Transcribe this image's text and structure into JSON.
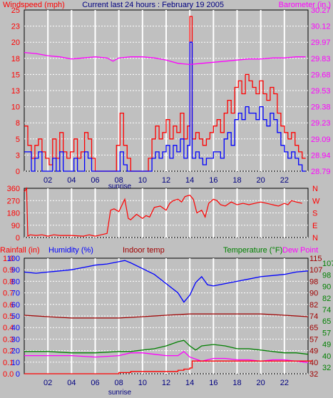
{
  "panel1": {
    "title_left": "Windspeed (mph)",
    "title_center": "Current last 24 hours : February 19 2005",
    "title_right": "Barometer (in.)"
  },
  "panel3": {
    "label_rain": "Rainfall (in)",
    "label_humidity": "Humidity (%)",
    "label_indoor": "Indoor temp",
    "label_temperature": "Temperature (°F)",
    "label_dewpoint": "Dew Point"
  },
  "sunrise_label": "sunrise",
  "colors": {
    "background": "#c0c0c0",
    "gridline": "#ffffff",
    "wind_speed": "#0000ff",
    "wind_gust": "#ff0000",
    "barometer": "#ff00ff",
    "direction": "#ff0000",
    "humidity": "#0000ff",
    "indoor": "#a00000",
    "temperature": "#008000",
    "dewpoint": "#ff00ff",
    "rain": "#ff0000"
  },
  "chart_data": [
    {
      "type": "bar",
      "name": "windspeed",
      "x_ticks": [
        "02",
        "04",
        "06",
        "08",
        "10",
        "12",
        "14",
        "16",
        "18",
        "20",
        "22"
      ],
      "xlim": [
        0,
        24
      ],
      "ylim": [
        0,
        25
      ],
      "y_ticks_left": [
        "25",
        "23",
        "20",
        "18",
        "15",
        "13",
        "10",
        "8",
        "5",
        "3",
        "0"
      ],
      "y_ticks_right": [
        "30.27",
        "30.12",
        "29.97",
        "29.83",
        "29.68",
        "29.53",
        "29.38",
        "29.23",
        "29.09",
        "28.94",
        "28.79"
      ],
      "y2lim": [
        28.79,
        30.27
      ],
      "series": [
        {
          "name": "Windspeed (mph)",
          "x": [
            0.0,
            0.3,
            0.6,
            0.9,
            1.2,
            1.5,
            1.8,
            2.1,
            2.4,
            2.7,
            3.0,
            3.3,
            3.6,
            3.9,
            4.2,
            4.5,
            4.8,
            5.1,
            5.4,
            5.7,
            6.0,
            6.3,
            6.6,
            6.9,
            7.2,
            7.5,
            7.8,
            8.1,
            8.4,
            8.7,
            9.0,
            9.3,
            9.6,
            9.9,
            10.2,
            10.5,
            10.8,
            11.1,
            11.4,
            11.7,
            12.0,
            12.3,
            12.6,
            12.9,
            13.2,
            13.5,
            13.8,
            14.0,
            14.2,
            14.5,
            14.8,
            15.1,
            15.4,
            15.7,
            16.0,
            16.3,
            16.6,
            16.9,
            17.2,
            17.5,
            17.8,
            18.1,
            18.4,
            18.7,
            19.0,
            19.3,
            19.6,
            19.9,
            20.2,
            20.5,
            20.8,
            21.1,
            21.4,
            21.7,
            22.0,
            22.3,
            22.6,
            22.9,
            23.2,
            23.5
          ],
          "values": [
            3,
            3,
            0,
            2,
            3,
            0,
            0,
            0,
            2,
            0,
            3,
            0,
            0,
            0,
            2,
            0,
            0,
            3,
            2,
            0,
            0,
            0,
            0,
            0,
            0,
            0,
            0,
            3,
            1,
            0,
            0,
            0,
            0,
            0,
            0,
            0,
            2,
            3,
            2,
            3,
            4,
            2,
            4,
            3,
            5,
            2,
            4,
            20,
            2,
            3,
            2,
            1,
            2,
            2,
            3,
            3,
            2,
            5,
            6,
            4,
            8,
            9,
            8,
            10,
            9,
            9,
            8,
            10,
            8,
            7,
            9,
            8,
            6,
            4,
            3,
            2,
            3,
            2,
            1,
            0
          ]
        },
        {
          "name": "Gust",
          "x": [
            0.0,
            0.3,
            0.6,
            0.9,
            1.2,
            1.5,
            1.8,
            2.1,
            2.4,
            2.7,
            3.0,
            3.3,
            3.6,
            3.9,
            4.2,
            4.5,
            4.8,
            5.1,
            5.4,
            5.7,
            6.0,
            6.3,
            6.6,
            6.9,
            7.2,
            7.5,
            7.8,
            8.1,
            8.4,
            8.7,
            9.0,
            9.3,
            9.6,
            9.9,
            10.2,
            10.5,
            10.8,
            11.1,
            11.4,
            11.7,
            12.0,
            12.3,
            12.6,
            12.9,
            13.2,
            13.5,
            13.8,
            14.0,
            14.2,
            14.5,
            14.8,
            15.1,
            15.4,
            15.7,
            16.0,
            16.3,
            16.6,
            16.9,
            17.2,
            17.5,
            17.8,
            18.1,
            18.4,
            18.7,
            19.0,
            19.3,
            19.6,
            19.9,
            20.2,
            20.5,
            20.8,
            21.1,
            21.4,
            21.7,
            22.0,
            22.3,
            22.6,
            22.9,
            23.2,
            23.5
          ],
          "values": [
            7,
            4,
            2,
            4,
            5,
            3,
            2,
            1,
            5,
            2,
            6,
            3,
            2,
            3,
            5,
            2,
            3,
            6,
            5,
            2,
            0,
            0,
            0,
            0,
            0,
            0,
            4,
            9,
            4,
            2,
            0,
            0,
            0,
            0,
            0,
            2,
            5,
            7,
            5,
            6,
            8,
            5,
            7,
            6,
            9,
            5,
            7,
            24,
            5,
            6,
            5,
            4,
            5,
            6,
            7,
            8,
            6,
            9,
            11,
            9,
            13,
            14,
            12,
            15,
            14,
            13,
            12,
            14,
            12,
            11,
            13,
            12,
            9,
            7,
            6,
            5,
            6,
            4,
            3,
            2
          ]
        },
        {
          "name": "Barometer (in.)",
          "x": [
            0,
            1,
            2,
            3,
            4,
            5,
            6,
            7,
            7.5,
            8,
            9,
            10,
            11,
            12,
            13,
            14,
            15,
            16,
            17,
            18,
            19,
            20,
            21,
            22,
            23,
            23.8
          ],
          "values": [
            29.88,
            29.87,
            29.85,
            29.84,
            29.82,
            29.83,
            29.84,
            29.83,
            29.8,
            29.83,
            29.84,
            29.84,
            29.83,
            29.81,
            29.78,
            29.77,
            29.78,
            29.79,
            29.8,
            29.81,
            29.82,
            29.82,
            29.83,
            29.83,
            29.84,
            29.84
          ]
        }
      ]
    },
    {
      "type": "line",
      "name": "wind_direction",
      "x_ticks": [
        "02",
        "04",
        "06",
        "08",
        "10",
        "12",
        "14",
        "16",
        "18",
        "20",
        "22"
      ],
      "xlim": [
        0,
        24
      ],
      "ylim": [
        0,
        360
      ],
      "y_ticks_left": [
        "360",
        "270",
        "180",
        "90",
        "0"
      ],
      "y_ticks_right": [
        "N",
        "W",
        "S",
        "E",
        "N"
      ],
      "series": [
        {
          "name": "Wind direction",
          "x": [
            0,
            0.2,
            0.3,
            0.5,
            1,
            1.5,
            2,
            2.5,
            3,
            4,
            5,
            5.5,
            6,
            6.5,
            7,
            7.3,
            7.6,
            8,
            8.5,
            8.8,
            9,
            9.5,
            10,
            10.3,
            10.6,
            11,
            11.5,
            12,
            12.3,
            12.6,
            13,
            13.3,
            13.6,
            14,
            14.3,
            14.6,
            15,
            15.3,
            15.6,
            16,
            16.3,
            16.6,
            17,
            17.5,
            18,
            18.5,
            19,
            19.5,
            20,
            20.5,
            21,
            21.5,
            22,
            22.3,
            22.6,
            23,
            23.5
          ],
          "values": [
            335,
            360,
            10,
            20,
            15,
            20,
            10,
            20,
            15,
            15,
            10,
            20,
            10,
            20,
            30,
            200,
            210,
            190,
            280,
            140,
            130,
            170,
            140,
            160,
            150,
            220,
            230,
            200,
            250,
            270,
            280,
            260,
            300,
            310,
            280,
            180,
            200,
            150,
            250,
            280,
            270,
            240,
            230,
            260,
            240,
            250,
            240,
            250,
            260,
            250,
            240,
            230,
            250,
            240,
            270,
            260,
            250
          ]
        }
      ]
    },
    {
      "type": "line",
      "name": "humidity_temperature",
      "x_ticks": [
        "02",
        "04",
        "06",
        "08",
        "10",
        "12",
        "14",
        "16",
        "18",
        "20",
        "22"
      ],
      "xlim": [
        0,
        24
      ],
      "ylim_rain": [
        0.0,
        1.0
      ],
      "ylim_humidity": [
        0,
        100
      ],
      "ylim_temperature": [
        32,
        115
      ],
      "y_ticks_rain": [
        "1.0",
        "0.9",
        "0.8",
        "0.7",
        "0.6",
        "0.5",
        "0.4",
        "0.3",
        "0.2",
        "0.1",
        "0.0"
      ],
      "y_ticks_humidity": [
        "100",
        "90",
        "80",
        "70",
        "60",
        "50",
        "40",
        "30",
        "20",
        "10",
        "0"
      ],
      "y_ticks_temp_a": [
        "115",
        "107",
        "98",
        "90",
        "82",
        "74",
        "65",
        "57",
        "49",
        "40",
        "32"
      ],
      "y_ticks_temp_b": [
        "107",
        "98",
        "90",
        "82",
        "74",
        "65",
        "57",
        "49",
        "40",
        "32"
      ],
      "series": [
        {
          "name": "Humidity (%)",
          "x": [
            0,
            1,
            2,
            3,
            4,
            5,
            6,
            7,
            8,
            8.5,
            9,
            10,
            11,
            12,
            13,
            13.5,
            14,
            14.5,
            15,
            15.5,
            16,
            17,
            18,
            19,
            20,
            21,
            22,
            23,
            24
          ],
          "values": [
            88,
            87,
            88,
            89,
            90,
            92,
            94,
            95,
            97,
            98,
            96,
            91,
            86,
            78,
            70,
            62,
            68,
            79,
            84,
            77,
            76,
            78,
            80,
            82,
            84,
            85,
            86,
            88,
            89
          ]
        },
        {
          "name": "Indoor temp",
          "x": [
            0,
            2,
            4,
            6,
            8,
            10,
            12,
            14,
            16,
            18,
            20,
            22,
            24
          ],
          "values": [
            74,
            73,
            72,
            72,
            72,
            73,
            74,
            75,
            75,
            75,
            75,
            74,
            73
          ]
        },
        {
          "name": "Temperature (°F)",
          "x": [
            0,
            2,
            4,
            6,
            8,
            9,
            10,
            11,
            12,
            13,
            13.5,
            14,
            14.5,
            15,
            16,
            17,
            18,
            19,
            20,
            21,
            22,
            23,
            24
          ],
          "values": [
            48,
            48,
            47,
            47,
            48,
            48,
            49,
            50,
            52,
            55,
            56,
            52,
            49,
            52,
            53,
            52,
            50,
            50,
            49,
            48,
            47,
            47,
            46
          ]
        },
        {
          "name": "Dew Point",
          "x": [
            0,
            2,
            4,
            6,
            8,
            9,
            10,
            11,
            12,
            13,
            13.5,
            14,
            15,
            16,
            17,
            18,
            19,
            20,
            21,
            22,
            23,
            24
          ],
          "values": [
            45,
            45,
            45,
            44,
            45,
            47,
            47,
            46,
            45,
            45,
            48,
            44,
            41,
            43,
            43,
            42,
            42,
            41,
            42,
            42,
            41,
            40
          ]
        },
        {
          "name": "Rainfall (in)",
          "x": [
            0,
            2,
            4,
            6,
            8,
            9,
            10,
            11,
            12,
            13,
            13.5,
            14,
            14.2,
            15,
            18,
            20,
            22,
            24
          ],
          "values": [
            0,
            0,
            0,
            0,
            0.01,
            0.02,
            0.02,
            0.02,
            0.02,
            0.03,
            0.04,
            0.05,
            0.11,
            0.11,
            0.11,
            0.11,
            0.11,
            0.11
          ]
        }
      ]
    }
  ]
}
